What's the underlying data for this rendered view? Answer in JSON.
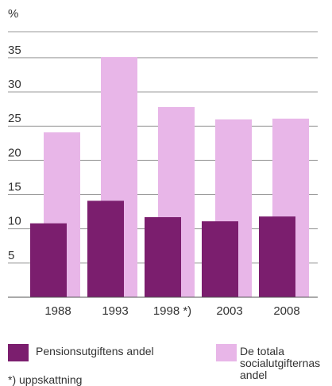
{
  "chart_data": {
    "type": "bar",
    "unit_label": "%",
    "categories": [
      "1988",
      "1993",
      "1998 *)",
      "2003",
      "2008"
    ],
    "series": [
      {
        "name": "Pensionsutgiftens andel",
        "color": "#7b1e6e",
        "values": [
          10.8,
          14.1,
          11.7,
          11.1,
          11.8
        ]
      },
      {
        "name": "De totala socialutgifternas andel",
        "color": "#e8b6e8",
        "values": [
          24.1,
          35.1,
          27.8,
          26.0,
          26.1
        ]
      }
    ],
    "ylim": [
      0,
      38
    ],
    "yticks": [
      5,
      10,
      15,
      20,
      25,
      30,
      35
    ],
    "grid": true,
    "footnote": "*) uppskattning"
  }
}
